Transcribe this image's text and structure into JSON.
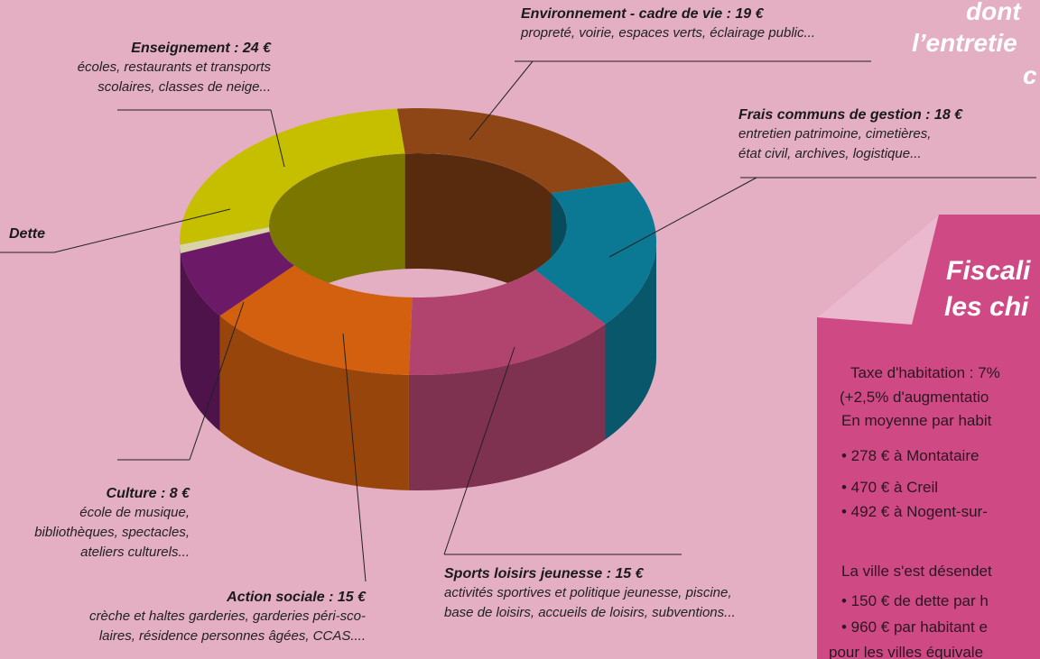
{
  "chart_data": {
    "type": "donut3d",
    "categories": [
      "Environnement - cadre de vie : 19 €",
      "Frais communs de gestion : 18 €",
      "Sports loisirs jeunesse : 15 €",
      "Action sociale : 15 €",
      "Culture : 8 €",
      "Dette",
      "Enseignement : 24 €"
    ],
    "values": [
      19,
      18,
      15,
      15,
      8,
      1,
      24
    ],
    "colors": [
      "#8e4616",
      "#0b7994",
      "#b0446f",
      "#d2600f",
      "#6c1a68",
      "#d8d4a8",
      "#c6bf00"
    ],
    "descriptions": [
      [
        "propreté, voirie, espaces verts, éclairage public..."
      ],
      [
        "entretien patrimoine, cimetières,",
        "état civil, archives, logistique..."
      ],
      [
        "activités sportives et politique jeunesse, piscine,",
        "base de loisirs, accueils de loisirs, subventions..."
      ],
      [
        "crèche et haltes garderies, garderies péri-sco-",
        "laires, résidence personnes âgées, CCAS...."
      ],
      [
        "école de musique,",
        "bibliothèques, spectacles,",
        "ateliers culturels..."
      ],
      [],
      [
        "écoles, restaurants et transports",
        "scolaires, classes de neige..."
      ]
    ]
  },
  "top_note": [
    "dont",
    "l’entretie",
    "c"
  ],
  "side_panel": {
    "heading": [
      "Fiscali",
      "les chi"
    ],
    "lines": [
      "Taxe d'habitation : 7%",
      "(+2,5% d'augmentatio",
      "En moyenne par habit",
      "• 278 € à Montataire",
      "• 470 € à Creil",
      "• 492 € à Nogent-sur-",
      "La ville s'est désendet",
      "• 150 € de dette par h",
      "• 960 € par habitant e",
      "pour les villes équivale"
    ]
  }
}
